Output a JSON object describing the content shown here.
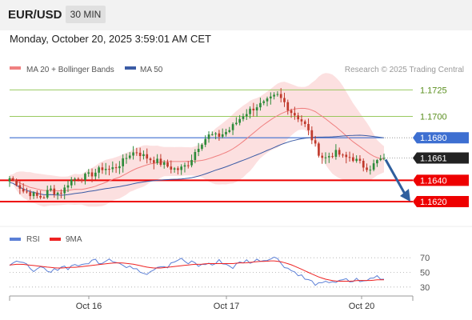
{
  "header": {
    "symbol": "EUR/USD",
    "timeframe": "30 MIN",
    "datetime": "Monday, October 20, 2025 3:59:01 AM CET"
  },
  "legend": {
    "ma20_label": "MA 20 + Bollinger Bands",
    "ma50_label": "MA 50",
    "credit": "Research © 2025 Trading Central",
    "rsi_label": "RSI",
    "rsi_ma_label": "9MA"
  },
  "colors": {
    "candle_up": "#2e8b3a",
    "candle_down": "#c0392b",
    "bollinger_fill": "#fbd5d5",
    "ma20": "#f08080",
    "ma50": "#3b5ba5",
    "target_green": "#8bc34a",
    "pivot_blue": "#3d6fd1",
    "support_red": "#ee0000",
    "arrow": "#2f5f9e",
    "rsi": "#5b7fd6",
    "rsi_ma": "#ee2222"
  },
  "chart_data": [
    {
      "type": "candlestick",
      "title": "",
      "xlabel": "",
      "ylabel": "",
      "x_ticks": [
        "Oct 16",
        "Oct 17",
        "Oct 20"
      ],
      "ylim": [
        1.1605,
        1.1738
      ],
      "close_series_approx": [
        1.1642,
        1.1638,
        1.163,
        1.1628,
        1.1625,
        1.1624,
        1.1632,
        1.1628,
        1.163,
        1.164,
        1.1642,
        1.1643,
        1.1645,
        1.1648,
        1.1652,
        1.165,
        1.1653,
        1.1658,
        1.1665,
        1.1667,
        1.1663,
        1.166,
        1.1658,
        1.1655,
        1.1652,
        1.165,
        1.1652,
        1.1658,
        1.167,
        1.1678,
        1.1683,
        1.1681,
        1.1684,
        1.1688,
        1.1695,
        1.1702,
        1.1706,
        1.171,
        1.1712,
        1.1716,
        1.172,
        1.1714,
        1.1705,
        1.17,
        1.1694,
        1.1682,
        1.1668,
        1.166,
        1.1664,
        1.1666,
        1.1661,
        1.1662,
        1.1658,
        1.1653,
        1.1652,
        1.1658,
        1.1661
      ],
      "levels": [
        {
          "value": 1.1725,
          "label": "1.1725",
          "style": "target"
        },
        {
          "value": 1.17,
          "label": "1.1700",
          "style": "target"
        },
        {
          "value": 1.168,
          "label": "1.1680",
          "style": "pivot"
        },
        {
          "value": 1.1661,
          "label": "1.1661",
          "style": "last"
        },
        {
          "value": 1.164,
          "label": "1.1640",
          "style": "support"
        },
        {
          "value": 1.162,
          "label": "1.1620",
          "style": "support"
        }
      ],
      "last_price": 1.1661,
      "forecast_arrow": {
        "from": 1.1661,
        "to": 1.162
      },
      "series": [
        {
          "name": "MA 20 + Bollinger Bands"
        },
        {
          "name": "MA 50"
        }
      ],
      "legend_position": "top-left"
    },
    {
      "type": "line",
      "title": "",
      "ylim": [
        20,
        80
      ],
      "y_ticks": [
        "70",
        "50",
        "30"
      ],
      "series": [
        {
          "name": "RSI",
          "values": [
            62,
            66,
            61,
            58,
            52,
            56,
            48,
            54,
            59,
            56,
            62,
            58,
            64,
            67,
            63,
            70,
            66,
            61,
            55,
            58,
            52,
            49,
            56,
            60,
            57,
            64,
            68,
            62,
            65,
            58,
            63,
            60,
            66,
            61,
            57,
            63,
            66,
            64,
            68,
            66,
            73,
            66,
            58,
            52,
            48,
            41,
            37,
            33,
            35,
            39,
            36,
            40,
            37,
            41,
            36,
            42,
            45,
            41
          ]
        },
        {
          "name": "9MA",
          "values": [
            60,
            61,
            61,
            60,
            59,
            58,
            57,
            56,
            56,
            57,
            57,
            58,
            59,
            60,
            61,
            62,
            63,
            63,
            62,
            61,
            59,
            57,
            56,
            56,
            57,
            58,
            59,
            60,
            61,
            61,
            62,
            62,
            62,
            62,
            62,
            63,
            63,
            64,
            65,
            65,
            66,
            65,
            63,
            60,
            56,
            52,
            48,
            44,
            41,
            39,
            38,
            38,
            38,
            39,
            39,
            39,
            40,
            40
          ]
        }
      ]
    }
  ]
}
